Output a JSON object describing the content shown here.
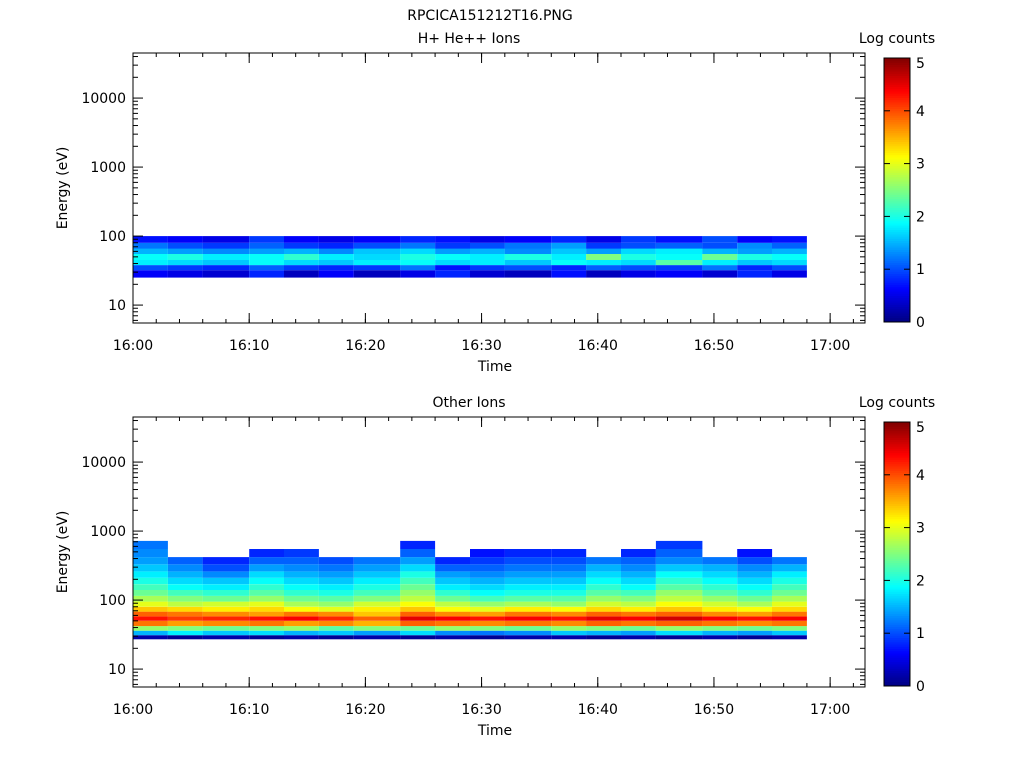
{
  "chart_data": {
    "type": "heatmap",
    "title": "RPCICA151212T16.PNG",
    "panels": [
      {
        "name": "panel-top",
        "title": "H+ He++ Ions",
        "xlabel": "Time",
        "ylabel": "Energy (eV)",
        "colorbar_label": "Log counts",
        "colorbar_ticks": [
          "0",
          "1",
          "2",
          "3",
          "4",
          "5"
        ],
        "clim": [
          0,
          5
        ],
        "x_ticks": [
          "16:00",
          "16:10",
          "16:20",
          "16:30",
          "16:40",
          "16:50",
          "17:00"
        ],
        "y_ticks": [
          "10",
          "100",
          "1000",
          "10000"
        ],
        "y_scale": "log",
        "ylim": [
          5.5,
          45000
        ],
        "xlim": [
          "16:00",
          "17:03"
        ],
        "time_bins": [
          "16:00",
          "16:03",
          "16:06",
          "16:10",
          "16:13",
          "16:16",
          "16:19",
          "16:23",
          "16:26",
          "16:29",
          "16:32",
          "16:36",
          "16:39",
          "16:42",
          "16:45",
          "16:49",
          "16:52",
          "16:55"
        ],
        "energy_bands": [
          {
            "e_min": 25,
            "e_max": 32,
            "levels": [
              0.6,
              0.5,
              0.4,
              0.8,
              0.3,
              0.6,
              0.3,
              0.5,
              0.8,
              0.4,
              0.3,
              0.7,
              0.3,
              0.5,
              0.6,
              0.4,
              0.8,
              0.5
            ]
          },
          {
            "e_min": 32,
            "e_max": 38,
            "levels": [
              1.0,
              0.9,
              0.8,
              1.1,
              0.9,
              0.8,
              0.9,
              1.2,
              0.7,
              0.9,
              1.0,
              0.8,
              1.1,
              1.0,
              0.9,
              1.2,
              0.8,
              1.0
            ]
          },
          {
            "e_min": 38,
            "e_max": 45,
            "levels": [
              1.8,
              1.7,
              1.6,
              1.9,
              1.7,
              1.6,
              1.8,
              1.9,
              1.7,
              1.8,
              1.6,
              1.9,
              1.8,
              1.7,
              2.3,
              1.8,
              1.6,
              1.7
            ]
          },
          {
            "e_min": 45,
            "e_max": 55,
            "levels": [
              1.9,
              2.0,
              1.8,
              1.9,
              2.1,
              1.8,
              1.7,
              2.0,
              1.9,
              1.8,
              2.0,
              1.8,
              2.5,
              2.0,
              1.9,
              2.4,
              2.0,
              1.9
            ]
          },
          {
            "e_min": 55,
            "e_max": 66,
            "levels": [
              1.5,
              1.4,
              1.3,
              1.4,
              1.5,
              1.3,
              1.6,
              1.7,
              1.4,
              1.5,
              1.3,
              1.6,
              1.4,
              1.7,
              1.8,
              1.5,
              1.4,
              1.5
            ]
          },
          {
            "e_min": 66,
            "e_max": 80,
            "levels": [
              1.2,
              1.0,
              0.9,
              1.1,
              0.9,
              0.8,
              1.0,
              1.2,
              0.9,
              1.0,
              1.2,
              1.4,
              0.9,
              1.0,
              1.1,
              1.0,
              1.3,
              1.1
            ]
          },
          {
            "e_min": 80,
            "e_max": 100,
            "levels": [
              0.7,
              0.6,
              0.5,
              0.9,
              0.6,
              0.5,
              0.6,
              0.8,
              0.7,
              0.5,
              0.6,
              0.8,
              0.5,
              0.9,
              0.7,
              1.0,
              0.6,
              0.7
            ]
          }
        ]
      },
      {
        "name": "panel-bottom",
        "title": "Other Ions",
        "xlabel": "Time",
        "ylabel": "Energy (eV)",
        "colorbar_label": "Log counts",
        "colorbar_ticks": [
          "0",
          "1",
          "2",
          "3",
          "4",
          "5"
        ],
        "clim": [
          0,
          5
        ],
        "x_ticks": [
          "16:00",
          "16:10",
          "16:20",
          "16:30",
          "16:40",
          "16:50",
          "17:00"
        ],
        "y_ticks": [
          "10",
          "100",
          "1000",
          "10000"
        ],
        "y_scale": "log",
        "ylim": [
          5.5,
          45000
        ],
        "xlim": [
          "16:00",
          "17:03"
        ],
        "time_bins": [
          "16:00",
          "16:03",
          "16:06",
          "16:10",
          "16:13",
          "16:16",
          "16:19",
          "16:23",
          "16:26",
          "16:29",
          "16:32",
          "16:36",
          "16:39",
          "16:42",
          "16:45",
          "16:49",
          "16:52",
          "16:55"
        ],
        "energy_bands": [
          {
            "e_min": 27,
            "e_max": 31,
            "levels": [
              0.2,
              0.1,
              0.2,
              0.1,
              0.2,
              0.1,
              0.2,
              0.1,
              0.2,
              0.1,
              0.2,
              0.2,
              0.1,
              0.2,
              0.1,
              0.2,
              0.1,
              0.2
            ]
          },
          {
            "e_min": 31,
            "e_max": 36,
            "levels": [
              1.5,
              1.8,
              1.6,
              1.7,
              1.5,
              1.6,
              1.4,
              1.7,
              1.3,
              1.2,
              1.3,
              1.6,
              1.5,
              1.4,
              1.7,
              1.5,
              1.4,
              1.6
            ]
          },
          {
            "e_min": 36,
            "e_max": 42,
            "levels": [
              2.6,
              2.5,
              2.4,
              2.5,
              2.6,
              2.3,
              2.5,
              2.4,
              2.6,
              2.5,
              2.4,
              2.6,
              2.5,
              2.4,
              2.6,
              2.5,
              2.4,
              2.5
            ]
          },
          {
            "e_min": 42,
            "e_max": 50,
            "levels": [
              3.8,
              3.6,
              3.7,
              3.8,
              3.6,
              3.7,
              3.5,
              3.9,
              3.8,
              3.7,
              3.8,
              3.7,
              3.9,
              3.8,
              3.9,
              3.8,
              3.7,
              3.8
            ]
          },
          {
            "e_min": 50,
            "e_max": 58,
            "levels": [
              4.3,
              4.1,
              4.2,
              4.3,
              4.4,
              4.2,
              3.9,
              4.5,
              4.4,
              4.3,
              4.4,
              4.3,
              4.5,
              4.4,
              4.6,
              4.4,
              4.3,
              4.4
            ]
          },
          {
            "e_min": 58,
            "e_max": 68,
            "levels": [
              3.9,
              3.8,
              3.7,
              3.6,
              3.8,
              3.7,
              3.4,
              3.9,
              3.7,
              3.6,
              3.8,
              3.7,
              3.9,
              3.8,
              3.9,
              3.7,
              3.6,
              3.8
            ]
          },
          {
            "e_min": 68,
            "e_max": 80,
            "levels": [
              3.4,
              3.3,
              3.2,
              3.3,
              3.1,
              3.0,
              3.2,
              3.4,
              3.1,
              3.0,
              3.2,
              3.1,
              3.3,
              3.2,
              3.4,
              3.2,
              3.1,
              3.3
            ]
          },
          {
            "e_min": 80,
            "e_max": 95,
            "levels": [
              3.0,
              2.8,
              2.9,
              3.0,
              2.7,
              2.6,
              2.9,
              3.1,
              2.8,
              2.6,
              2.7,
              2.6,
              2.9,
              2.8,
              3.1,
              2.9,
              2.7,
              3.0
            ]
          },
          {
            "e_min": 95,
            "e_max": 115,
            "levels": [
              2.7,
              2.5,
              2.4,
              2.6,
              2.4,
              2.3,
              2.5,
              2.8,
              2.4,
              2.2,
              2.3,
              2.3,
              2.6,
              2.5,
              2.8,
              2.6,
              2.4,
              2.7
            ]
          },
          {
            "e_min": 115,
            "e_max": 140,
            "levels": [
              2.4,
              2.2,
              2.1,
              2.3,
              2.1,
              2.0,
              2.2,
              2.6,
              2.1,
              1.9,
              2.0,
              2.0,
              2.3,
              2.2,
              2.6,
              2.3,
              2.1,
              2.4
            ]
          },
          {
            "e_min": 140,
            "e_max": 170,
            "levels": [
              2.2,
              1.9,
              1.8,
              2.1,
              1.9,
              1.8,
              2.0,
              2.4,
              1.8,
              1.7,
              1.8,
              1.8,
              2.1,
              1.9,
              2.3,
              2.1,
              1.9,
              2.2
            ]
          },
          {
            "e_min": 170,
            "e_max": 210,
            "levels": [
              2.0,
              1.7,
              1.6,
              1.9,
              1.7,
              1.6,
              1.8,
              2.2,
              1.6,
              1.5,
              1.6,
              1.6,
              1.9,
              1.7,
              2.1,
              1.9,
              1.7,
              2.0
            ]
          },
          {
            "e_min": 210,
            "e_max": 260,
            "levels": [
              1.8,
              1.5,
              1.3,
              1.7,
              1.5,
              1.4,
              1.6,
              2.0,
              1.4,
              1.3,
              1.4,
              1.4,
              1.7,
              1.5,
              1.9,
              1.7,
              1.5,
              1.8
            ]
          },
          {
            "e_min": 260,
            "e_max": 330,
            "levels": [
              1.6,
              1.3,
              1.0,
              1.4,
              1.3,
              1.2,
              1.4,
              1.7,
              1.1,
              1.1,
              1.2,
              1.2,
              1.5,
              1.3,
              1.6,
              1.5,
              1.3,
              1.5
            ]
          },
          {
            "e_min": 330,
            "e_max": 420,
            "levels": [
              1.4,
              1.1,
              0.8,
              1.1,
              1.1,
              1.0,
              1.2,
              1.4,
              0.8,
              0.9,
              1.0,
              1.0,
              1.2,
              1.1,
              1.3,
              1.2,
              1.0,
              1.2
            ]
          },
          {
            "e_min": 420,
            "e_max": 550,
            "levels": [
              1.3,
              0.0,
              0.0,
              0.8,
              0.9,
              0.0,
              0.0,
              1.1,
              0.0,
              0.7,
              0.8,
              0.8,
              0.0,
              0.8,
              1.1,
              0.0,
              0.7,
              0.0
            ]
          },
          {
            "e_min": 550,
            "e_max": 720,
            "levels": [
              1.2,
              0.0,
              0.0,
              0.0,
              0.0,
              0.0,
              0.0,
              0.8,
              0.0,
              0.0,
              0.0,
              0.0,
              0.0,
              0.0,
              0.9,
              0.0,
              0.0,
              0.0
            ]
          }
        ]
      }
    ]
  }
}
